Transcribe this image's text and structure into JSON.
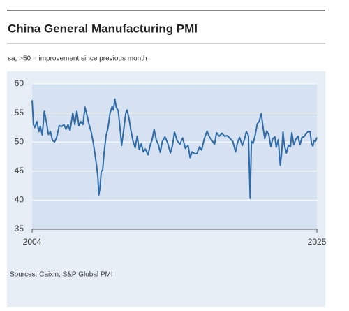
{
  "chart_data": {
    "type": "line",
    "title": "China General Manufacturing PMI",
    "subtitle": "sa, >50 = improvement since previous month",
    "source": "Sources: Caixin, S&P Global PMI",
    "xlim": [
      2004,
      2025
    ],
    "xticks": [
      2004,
      2025
    ],
    "ylim": [
      35,
      60
    ],
    "yticks": [
      35,
      40,
      45,
      50,
      55,
      60
    ],
    "grid": true,
    "x": [
      2004.0,
      2004.1,
      2004.2,
      2004.35,
      2004.5,
      2004.6,
      2004.75,
      2004.9,
      2005.05,
      2005.2,
      2005.35,
      2005.5,
      2005.65,
      2005.8,
      2006.0,
      2006.2,
      2006.35,
      2006.5,
      2006.65,
      2006.8,
      2007.0,
      2007.15,
      2007.3,
      2007.45,
      2007.6,
      2007.75,
      2007.9,
      2008.0,
      2008.2,
      2008.35,
      2008.5,
      2008.6,
      2008.75,
      2008.85,
      2008.92,
      2009.0,
      2009.1,
      2009.2,
      2009.3,
      2009.45,
      2009.6,
      2009.75,
      2009.9,
      2010.0,
      2010.1,
      2010.2,
      2010.35,
      2010.5,
      2010.6,
      2010.75,
      2010.9,
      2011.0,
      2011.15,
      2011.3,
      2011.45,
      2011.6,
      2011.75,
      2011.9,
      2012.05,
      2012.2,
      2012.35,
      2012.55,
      2012.7,
      2012.85,
      2013.0,
      2013.15,
      2013.3,
      2013.45,
      2013.6,
      2013.8,
      2014.0,
      2014.2,
      2014.35,
      2014.5,
      2014.7,
      2014.9,
      2015.1,
      2015.3,
      2015.5,
      2015.65,
      2015.8,
      2016.0,
      2016.15,
      2016.35,
      2016.5,
      2016.7,
      2016.9,
      2017.05,
      2017.25,
      2017.45,
      2017.6,
      2017.8,
      2018.0,
      2018.2,
      2018.4,
      2018.6,
      2018.8,
      2019.0,
      2019.15,
      2019.3,
      2019.5,
      2019.65,
      2019.8,
      2019.95,
      2020.08,
      2020.17,
      2020.3,
      2020.45,
      2020.6,
      2020.75,
      2020.9,
      2021.0,
      2021.15,
      2021.3,
      2021.45,
      2021.6,
      2021.75,
      2021.9,
      2022.0,
      2022.15,
      2022.3,
      2022.4,
      2022.5,
      2022.6,
      2022.75,
      2022.9,
      2023.05,
      2023.15,
      2023.3,
      2023.45,
      2023.6,
      2023.75,
      2023.9,
      2024.05,
      2024.2,
      2024.35,
      2024.5,
      2024.6,
      2024.7,
      2024.8,
      2024.9,
      2025.0
    ],
    "series": [
      {
        "name": "PMI",
        "color": "#2f6ba8",
        "values": [
          57.2,
          53,
          52.5,
          53.5,
          51.8,
          52.7,
          51.2,
          55.3,
          53.5,
          51.3,
          51.8,
          50.3,
          50.0,
          50.7,
          52.8,
          52.7,
          53.0,
          52.2,
          53.0,
          52.0,
          55.0,
          53.0,
          55.3,
          52.8,
          53.5,
          53.0,
          56.0,
          55.1,
          53.0,
          51.8,
          50.0,
          48.5,
          46.0,
          44.0,
          40.9,
          42.0,
          45.0,
          45.1,
          48.0,
          51.0,
          52.5,
          55.0,
          56.1,
          55.5,
          57.4,
          56.0,
          55.4,
          52.0,
          49.4,
          52.0,
          54.9,
          55.5,
          54.0,
          51.8,
          50.1,
          49.0,
          51.0,
          48.7,
          49.7,
          48.3,
          48.8,
          47.8,
          49.4,
          50.4,
          52.2,
          50.4,
          49.6,
          48.2,
          50.1,
          50.9,
          49.8,
          48.1,
          49.4,
          51.7,
          50.2,
          49.6,
          50.7,
          48.9,
          49.4,
          47.3,
          48.3,
          48.0,
          48.0,
          49.2,
          48.6,
          50.6,
          51.9,
          51.0,
          50.3,
          49.6,
          51.6,
          51.0,
          51.5,
          51.0,
          51.1,
          50.6,
          50.1,
          48.3,
          49.9,
          50.8,
          49.4,
          50.4,
          51.8,
          51.1,
          40.3,
          50.1,
          49.8,
          51.2,
          53.1,
          53.6,
          54.9,
          53.0,
          50.6,
          51.9,
          51.3,
          49.2,
          50.6,
          50.9,
          49.1,
          50.4,
          46.0,
          48.1,
          51.7,
          49.5,
          48.1,
          49.4,
          49.2,
          51.6,
          49.5,
          50.5,
          51.0,
          49.5,
          50.8,
          50.9,
          51.4,
          51.8,
          51.8,
          49.8,
          49.3,
          50.3,
          50.1,
          50.8
        ]
      }
    ]
  }
}
